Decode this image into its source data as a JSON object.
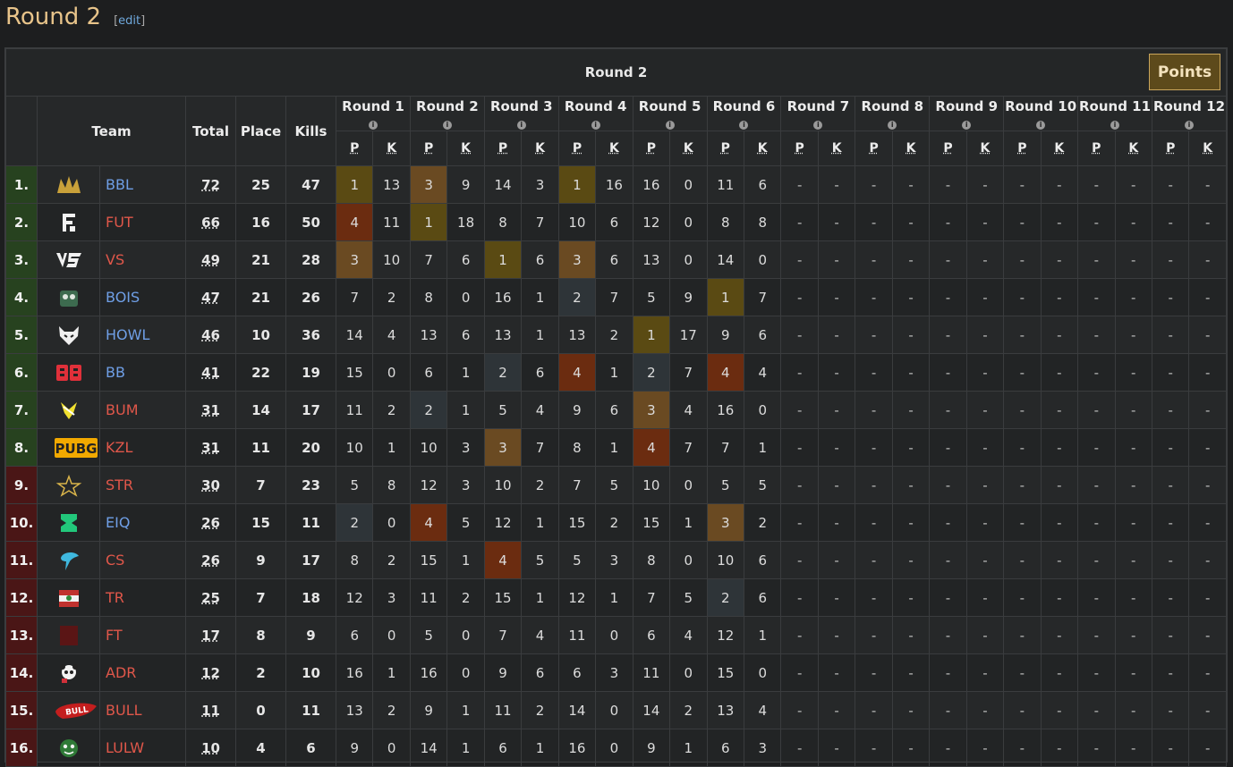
{
  "page": {
    "title": "Round 2",
    "edit_label": "edit"
  },
  "table": {
    "caption": "Round 2",
    "points_button": "Points",
    "headers": {
      "team": "Team",
      "total": "Total",
      "place": "Place",
      "kills": "Kills",
      "p": "P",
      "k": "K",
      "info": "i"
    },
    "rounds": [
      "Round 1",
      "Round 2",
      "Round 3",
      "Round 4",
      "Round 5",
      "Round 6",
      "Round 7",
      "Round 8",
      "Round 9",
      "Round 10",
      "Round 11",
      "Round 12"
    ],
    "colors": {
      "place_1": "#5a4a13",
      "place_2": "#2e3438",
      "place_3": "#6a4a22",
      "place_4": "#6b2c10",
      "rank_green": "#27421f",
      "rank_red": "#4a1616",
      "team_blue": "#6f9fe6",
      "team_red": "#e0574a",
      "points_button_bg": "#5d4a1b"
    },
    "rows": [
      {
        "rank": "1.",
        "status": "green",
        "team": "BBL",
        "team_color": "blue",
        "logo": "bbl-crown-logo",
        "total": "72",
        "place": "25",
        "kills": "47",
        "rounds": [
          [
            "1",
            "13"
          ],
          [
            "3",
            "9"
          ],
          [
            "14",
            "3"
          ],
          [
            "1",
            "16"
          ],
          [
            "16",
            "0"
          ],
          [
            "11",
            "6"
          ],
          [
            "-",
            "-"
          ],
          [
            "-",
            "-"
          ],
          [
            "-",
            "-"
          ],
          [
            "-",
            "-"
          ],
          [
            "-",
            "-"
          ],
          [
            "-",
            "-"
          ]
        ]
      },
      {
        "rank": "2.",
        "status": "green",
        "team": "FUT",
        "team_color": "red",
        "logo": "fut-logo",
        "total": "66",
        "place": "16",
        "kills": "50",
        "rounds": [
          [
            "4",
            "11"
          ],
          [
            "1",
            "18"
          ],
          [
            "8",
            "7"
          ],
          [
            "10",
            "6"
          ],
          [
            "12",
            "0"
          ],
          [
            "8",
            "8"
          ],
          [
            "-",
            "-"
          ],
          [
            "-",
            "-"
          ],
          [
            "-",
            "-"
          ],
          [
            "-",
            "-"
          ],
          [
            "-",
            "-"
          ],
          [
            "-",
            "-"
          ]
        ]
      },
      {
        "rank": "3.",
        "status": "green",
        "team": "VS",
        "team_color": "red",
        "logo": "vs-logo",
        "total": "49",
        "place": "21",
        "kills": "28",
        "rounds": [
          [
            "3",
            "10"
          ],
          [
            "7",
            "6"
          ],
          [
            "1",
            "6"
          ],
          [
            "3",
            "6"
          ],
          [
            "13",
            "0"
          ],
          [
            "14",
            "0"
          ],
          [
            "-",
            "-"
          ],
          [
            "-",
            "-"
          ],
          [
            "-",
            "-"
          ],
          [
            "-",
            "-"
          ],
          [
            "-",
            "-"
          ],
          [
            "-",
            "-"
          ]
        ]
      },
      {
        "rank": "4.",
        "status": "green",
        "team": "BOIS",
        "team_color": "blue",
        "logo": "bois-logo",
        "total": "47",
        "place": "21",
        "kills": "26",
        "rounds": [
          [
            "7",
            "2"
          ],
          [
            "8",
            "0"
          ],
          [
            "16",
            "1"
          ],
          [
            "2",
            "7"
          ],
          [
            "5",
            "9"
          ],
          [
            "1",
            "7"
          ],
          [
            "-",
            "-"
          ],
          [
            "-",
            "-"
          ],
          [
            "-",
            "-"
          ],
          [
            "-",
            "-"
          ],
          [
            "-",
            "-"
          ],
          [
            "-",
            "-"
          ]
        ]
      },
      {
        "rank": "5.",
        "status": "green",
        "team": "HOWL",
        "team_color": "blue",
        "logo": "wolf-logo",
        "total": "46",
        "place": "10",
        "kills": "36",
        "rounds": [
          [
            "14",
            "4"
          ],
          [
            "13",
            "6"
          ],
          [
            "13",
            "1"
          ],
          [
            "13",
            "2"
          ],
          [
            "1",
            "17"
          ],
          [
            "9",
            "6"
          ],
          [
            "-",
            "-"
          ],
          [
            "-",
            "-"
          ],
          [
            "-",
            "-"
          ],
          [
            "-",
            "-"
          ],
          [
            "-",
            "-"
          ],
          [
            "-",
            "-"
          ]
        ]
      },
      {
        "rank": "6.",
        "status": "green",
        "team": "BB",
        "team_color": "blue",
        "logo": "bb-logo",
        "total": "41",
        "place": "22",
        "kills": "19",
        "rounds": [
          [
            "15",
            "0"
          ],
          [
            "6",
            "1"
          ],
          [
            "2",
            "6"
          ],
          [
            "4",
            "1"
          ],
          [
            "2",
            "7"
          ],
          [
            "4",
            "4"
          ],
          [
            "-",
            "-"
          ],
          [
            "-",
            "-"
          ],
          [
            "-",
            "-"
          ],
          [
            "-",
            "-"
          ],
          [
            "-",
            "-"
          ],
          [
            "-",
            "-"
          ]
        ]
      },
      {
        "rank": "7.",
        "status": "green",
        "team": "BUM",
        "team_color": "red",
        "logo": "bum-logo",
        "total": "31",
        "place": "14",
        "kills": "17",
        "rounds": [
          [
            "11",
            "2"
          ],
          [
            "2",
            "1"
          ],
          [
            "5",
            "4"
          ],
          [
            "9",
            "6"
          ],
          [
            "3",
            "4"
          ],
          [
            "16",
            "0"
          ],
          [
            "-",
            "-"
          ],
          [
            "-",
            "-"
          ],
          [
            "-",
            "-"
          ],
          [
            "-",
            "-"
          ],
          [
            "-",
            "-"
          ],
          [
            "-",
            "-"
          ]
        ]
      },
      {
        "rank": "8.",
        "status": "green",
        "team": "KZL",
        "team_color": "red",
        "logo": "pubg-logo",
        "total": "31",
        "place": "11",
        "kills": "20",
        "rounds": [
          [
            "10",
            "1"
          ],
          [
            "10",
            "3"
          ],
          [
            "3",
            "7"
          ],
          [
            "8",
            "1"
          ],
          [
            "4",
            "7"
          ],
          [
            "7",
            "1"
          ],
          [
            "-",
            "-"
          ],
          [
            "-",
            "-"
          ],
          [
            "-",
            "-"
          ],
          [
            "-",
            "-"
          ],
          [
            "-",
            "-"
          ],
          [
            "-",
            "-"
          ]
        ]
      },
      {
        "rank": "9.",
        "status": "red",
        "team": "STR",
        "team_color": "red",
        "logo": "star-logo",
        "total": "30",
        "place": "7",
        "kills": "23",
        "rounds": [
          [
            "5",
            "8"
          ],
          [
            "12",
            "3"
          ],
          [
            "10",
            "2"
          ],
          [
            "7",
            "5"
          ],
          [
            "10",
            "0"
          ],
          [
            "5",
            "5"
          ],
          [
            "-",
            "-"
          ],
          [
            "-",
            "-"
          ],
          [
            "-",
            "-"
          ],
          [
            "-",
            "-"
          ],
          [
            "-",
            "-"
          ],
          [
            "-",
            "-"
          ]
        ]
      },
      {
        "rank": "10.",
        "status": "red",
        "team": "EIQ",
        "team_color": "blue",
        "logo": "eiq-logo",
        "total": "26",
        "place": "15",
        "kills": "11",
        "rounds": [
          [
            "2",
            "0"
          ],
          [
            "4",
            "5"
          ],
          [
            "12",
            "1"
          ],
          [
            "15",
            "2"
          ],
          [
            "15",
            "1"
          ],
          [
            "3",
            "2"
          ],
          [
            "-",
            "-"
          ],
          [
            "-",
            "-"
          ],
          [
            "-",
            "-"
          ],
          [
            "-",
            "-"
          ],
          [
            "-",
            "-"
          ],
          [
            "-",
            "-"
          ]
        ]
      },
      {
        "rank": "11.",
        "status": "red",
        "team": "CS",
        "team_color": "red",
        "logo": "cs-logo",
        "total": "26",
        "place": "9",
        "kills": "17",
        "rounds": [
          [
            "8",
            "2"
          ],
          [
            "15",
            "1"
          ],
          [
            "4",
            "5"
          ],
          [
            "5",
            "3"
          ],
          [
            "8",
            "0"
          ],
          [
            "10",
            "6"
          ],
          [
            "-",
            "-"
          ],
          [
            "-",
            "-"
          ],
          [
            "-",
            "-"
          ],
          [
            "-",
            "-"
          ],
          [
            "-",
            "-"
          ],
          [
            "-",
            "-"
          ]
        ]
      },
      {
        "rank": "12.",
        "status": "red",
        "team": "TR",
        "team_color": "red",
        "logo": "tr-logo",
        "total": "25",
        "place": "7",
        "kills": "18",
        "rounds": [
          [
            "12",
            "3"
          ],
          [
            "11",
            "2"
          ],
          [
            "15",
            "1"
          ],
          [
            "12",
            "1"
          ],
          [
            "7",
            "5"
          ],
          [
            "2",
            "6"
          ],
          [
            "-",
            "-"
          ],
          [
            "-",
            "-"
          ],
          [
            "-",
            "-"
          ],
          [
            "-",
            "-"
          ],
          [
            "-",
            "-"
          ],
          [
            "-",
            "-"
          ]
        ]
      },
      {
        "rank": "13.",
        "status": "red",
        "team": "FT",
        "team_color": "red",
        "logo": "ft-logo",
        "total": "17",
        "place": "8",
        "kills": "9",
        "rounds": [
          [
            "6",
            "0"
          ],
          [
            "5",
            "0"
          ],
          [
            "7",
            "4"
          ],
          [
            "11",
            "0"
          ],
          [
            "6",
            "4"
          ],
          [
            "12",
            "1"
          ],
          [
            "-",
            "-"
          ],
          [
            "-",
            "-"
          ],
          [
            "-",
            "-"
          ],
          [
            "-",
            "-"
          ],
          [
            "-",
            "-"
          ],
          [
            "-",
            "-"
          ]
        ]
      },
      {
        "rank": "14.",
        "status": "red",
        "team": "ADR",
        "team_color": "red",
        "logo": "panda-logo",
        "total": "12",
        "place": "2",
        "kills": "10",
        "rounds": [
          [
            "16",
            "1"
          ],
          [
            "16",
            "0"
          ],
          [
            "9",
            "6"
          ],
          [
            "6",
            "3"
          ],
          [
            "11",
            "0"
          ],
          [
            "15",
            "0"
          ],
          [
            "-",
            "-"
          ],
          [
            "-",
            "-"
          ],
          [
            "-",
            "-"
          ],
          [
            "-",
            "-"
          ],
          [
            "-",
            "-"
          ],
          [
            "-",
            "-"
          ]
        ]
      },
      {
        "rank": "15.",
        "status": "red",
        "team": "BULL",
        "team_color": "red",
        "logo": "bull-logo",
        "total": "11",
        "place": "0",
        "kills": "11",
        "rounds": [
          [
            "13",
            "2"
          ],
          [
            "9",
            "1"
          ],
          [
            "11",
            "2"
          ],
          [
            "14",
            "0"
          ],
          [
            "14",
            "2"
          ],
          [
            "13",
            "4"
          ],
          [
            "-",
            "-"
          ],
          [
            "-",
            "-"
          ],
          [
            "-",
            "-"
          ],
          [
            "-",
            "-"
          ],
          [
            "-",
            "-"
          ],
          [
            "-",
            "-"
          ]
        ]
      },
      {
        "rank": "16.",
        "status": "red",
        "team": "LULW",
        "team_color": "red",
        "logo": "lulw-logo",
        "total": "10",
        "place": "4",
        "kills": "6",
        "rounds": [
          [
            "9",
            "0"
          ],
          [
            "14",
            "1"
          ],
          [
            "6",
            "1"
          ],
          [
            "16",
            "0"
          ],
          [
            "9",
            "1"
          ],
          [
            "6",
            "3"
          ],
          [
            "-",
            "-"
          ],
          [
            "-",
            "-"
          ],
          [
            "-",
            "-"
          ],
          [
            "-",
            "-"
          ],
          [
            "-",
            "-"
          ],
          [
            "-",
            "-"
          ]
        ]
      }
    ]
  }
}
